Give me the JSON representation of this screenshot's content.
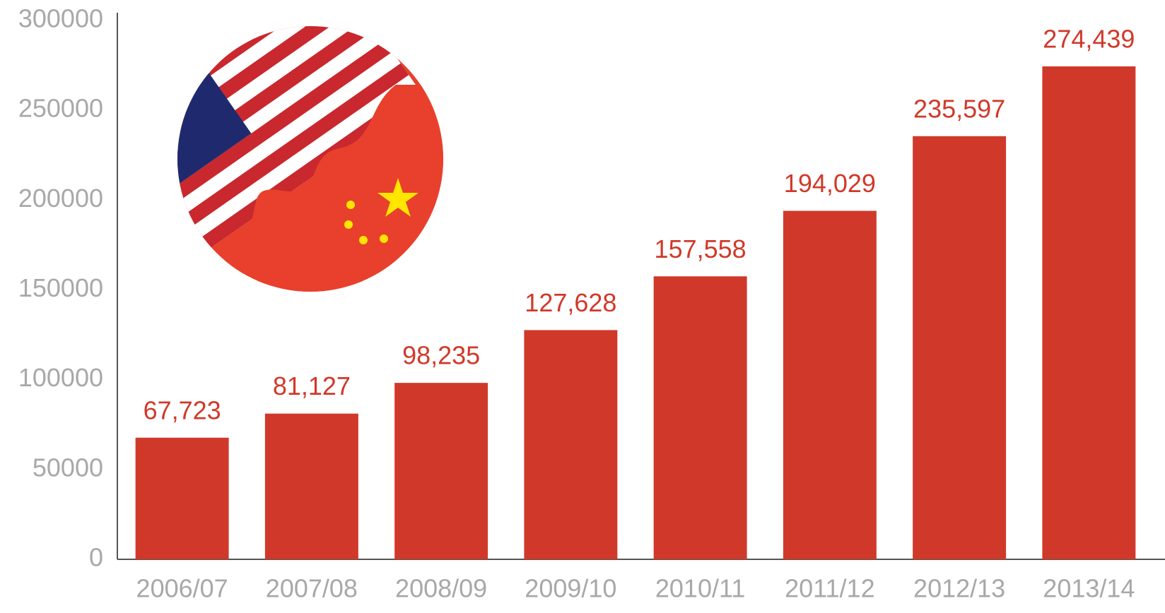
{
  "chart_data": {
    "type": "bar",
    "categories": [
      "2006/07",
      "2007/08",
      "2008/09",
      "2009/10",
      "2010/11",
      "2011/12",
      "2012/13",
      "2013/14"
    ],
    "values": [
      67723,
      81127,
      98235,
      127628,
      157558,
      194029,
      235597,
      274439
    ],
    "value_labels": [
      "67,723",
      "81,127",
      "98,235",
      "127,628",
      "157,558",
      "194,029",
      "235,597",
      "274,439"
    ],
    "color": "#d0392a",
    "ylim": [
      0,
      300000
    ],
    "yticks": [
      0,
      50000,
      100000,
      150000,
      200000,
      250000,
      300000
    ],
    "grid": false
  }
}
